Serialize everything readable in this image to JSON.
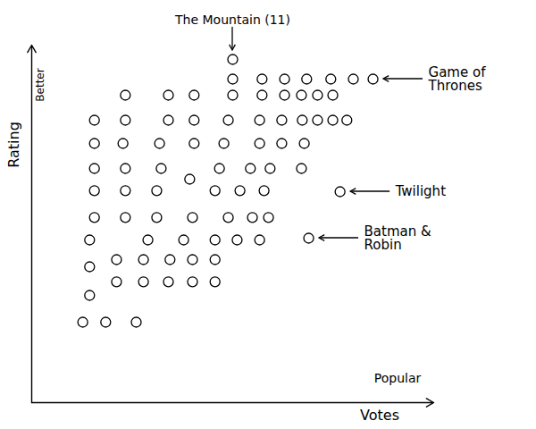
{
  "chart_data": {
    "type": "scatter",
    "x_label": "Votes",
    "y_label": "Rating",
    "axis_notes": {
      "x": "Popular",
      "y": "Better"
    },
    "xlim": [
      0,
      100
    ],
    "ylim": [
      0,
      100
    ],
    "xticks": [],
    "yticks": [],
    "tick_labels": false,
    "grid": false,
    "color": "#000000",
    "marker": "hollow circle",
    "x": [
      50,
      50,
      57.3,
      62.9,
      68.4,
      74.4,
      80,
      84.9,
      23.3,
      34,
      40.4,
      50,
      57.3,
      62.9,
      67.1,
      71.1,
      74.9,
      15.6,
      23.3,
      34,
      40.4,
      48.9,
      56.7,
      62.2,
      67.3,
      71.1,
      74.9,
      78.4,
      15.6,
      22.7,
      31.8,
      40.4,
      47.8,
      56.7,
      62.2,
      67.8,
      15.6,
      23.3,
      32.2,
      46.7,
      54.4,
      59.3,
      67.1,
      39.3,
      15.6,
      23.3,
      31.1,
      45.6,
      51.8,
      57.8,
      76.7,
      15.6,
      23.3,
      31.1,
      40,
      48.9,
      54.9,
      58.9,
      14.4,
      28.9,
      37.8,
      45.6,
      51.1,
      56.7,
      68.9,
      21.1,
      27.8,
      34.4,
      40,
      45.6,
      14.4,
      21.1,
      27.8,
      34,
      40,
      45.6,
      14.4,
      12.7,
      18.4,
      26
    ],
    "y": [
      96,
      90.5,
      90.5,
      90.5,
      90.5,
      90.5,
      90.5,
      90.5,
      86,
      86,
      86,
      86,
      86,
      86,
      86,
      86,
      86,
      79,
      79,
      79,
      79,
      79,
      79,
      79,
      79,
      79,
      79,
      79,
      72.5,
      72.5,
      72.5,
      72.5,
      72.5,
      72.5,
      72.5,
      72.5,
      65.5,
      65.5,
      65.5,
      65.5,
      65.5,
      65.5,
      65.5,
      62.5,
      59.3,
      59.3,
      59.3,
      59.3,
      59.3,
      59.3,
      59,
      51.8,
      51.8,
      51.8,
      51.8,
      51.8,
      51.8,
      51.8,
      45.5,
      45.5,
      45.5,
      45.5,
      45.5,
      45.5,
      46,
      40,
      40,
      40,
      40,
      40,
      38,
      33.8,
      33.8,
      33.8,
      33.8,
      33.8,
      30,
      22.5,
      22.5,
      22.5
    ],
    "annotations": [
      {
        "text": "The Mountain (11)",
        "x": 50,
        "y": 96
      },
      {
        "text": "Game of Thrones",
        "x": 84.9,
        "y": 90.5
      },
      {
        "text": "Twilight",
        "x": 76.7,
        "y": 59
      },
      {
        "text": "Batman & Robin",
        "x": 68.9,
        "y": 46
      }
    ]
  }
}
